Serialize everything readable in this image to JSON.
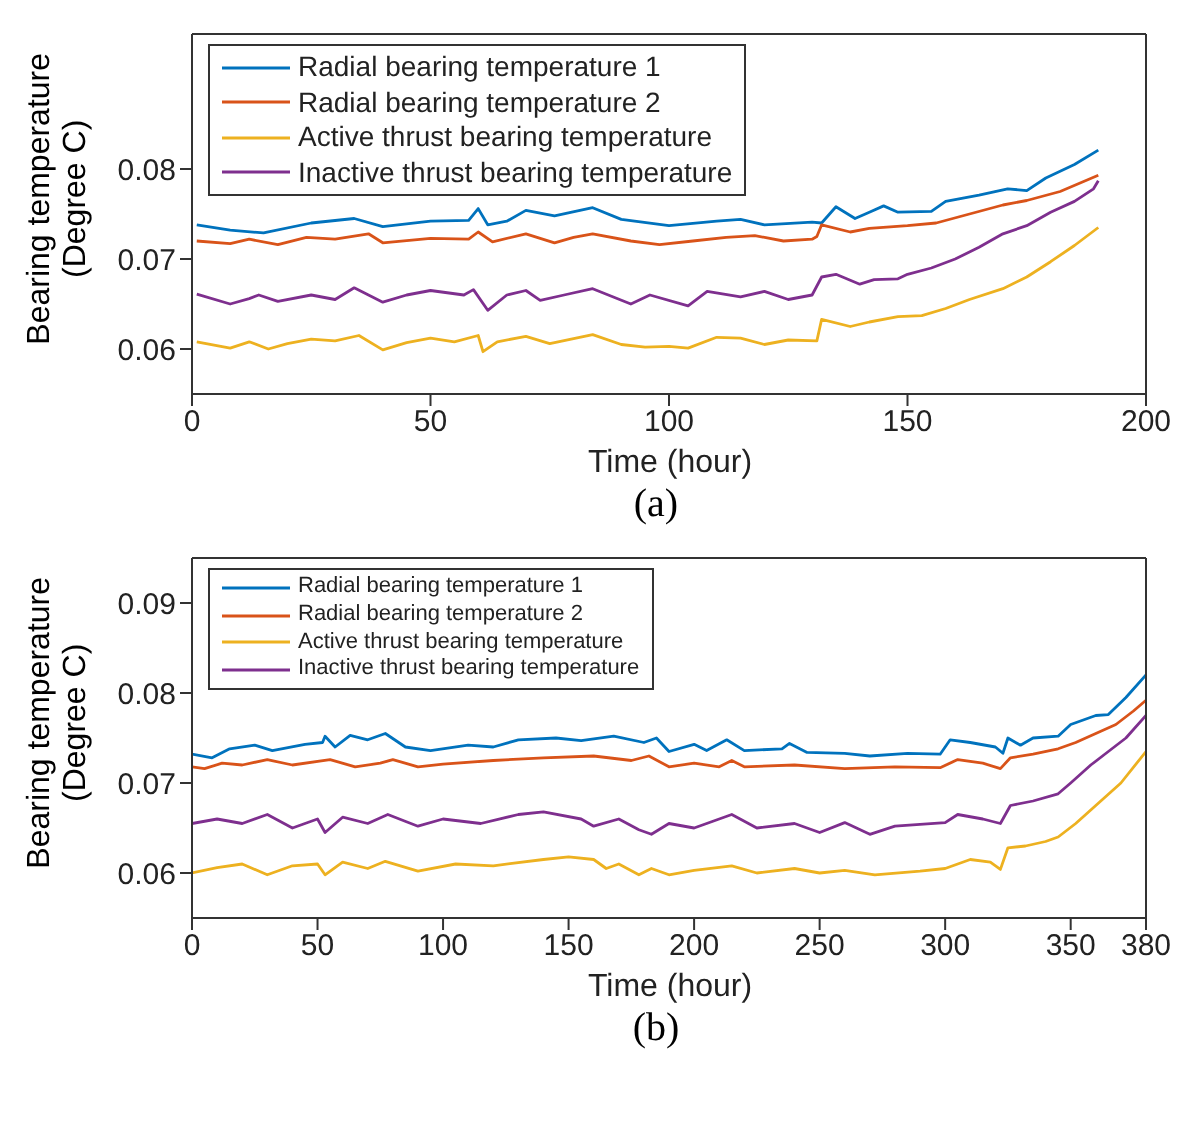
{
  "chart_data": [
    {
      "type": "line",
      "xlabel": "Time (hour)",
      "ylabel": "Bearing temperature (Degree C)",
      "annotations": [
        "(a)"
      ],
      "xlim": [
        0,
        200
      ],
      "xticks": [
        0,
        50,
        100,
        150,
        200
      ],
      "ylim": [
        0.055,
        0.095
      ],
      "yticks": [
        0.06,
        0.07,
        0.08
      ],
      "legend": "top left",
      "marker": "none",
      "line_style": "solid",
      "series": [
        {
          "name": "Radial bearing temperature 1",
          "color": "#0072bd",
          "x": [
            1,
            8,
            15,
            25,
            34,
            40,
            50,
            58,
            60,
            62,
            66,
            70,
            76,
            84,
            90,
            100,
            110,
            115,
            120,
            130,
            132,
            135,
            139,
            142,
            145,
            148,
            155,
            158,
            165,
            171,
            175,
            179,
            185,
            190
          ],
          "values": [
            0.0738,
            0.0732,
            0.0729,
            0.074,
            0.0745,
            0.0736,
            0.0742,
            0.0743,
            0.0756,
            0.0738,
            0.0742,
            0.0754,
            0.0748,
            0.0757,
            0.0744,
            0.0737,
            0.0742,
            0.0744,
            0.0738,
            0.0741,
            0.074,
            0.0758,
            0.0745,
            0.0752,
            0.0759,
            0.0752,
            0.0753,
            0.0764,
            0.0771,
            0.0778,
            0.0776,
            0.079,
            0.0805,
            0.0821
          ]
        },
        {
          "name": "Radial bearing temperature 2",
          "color": "#d95319",
          "x": [
            1,
            8,
            12,
            18,
            24,
            30,
            37,
            40,
            50,
            58,
            60,
            63,
            70,
            76,
            80,
            84,
            92,
            98,
            105,
            112,
            118,
            124,
            130,
            131,
            132,
            138,
            142,
            150,
            156,
            163,
            170,
            175,
            182,
            190
          ],
          "values": [
            0.072,
            0.0717,
            0.0722,
            0.0716,
            0.0724,
            0.0722,
            0.0728,
            0.0718,
            0.0723,
            0.0722,
            0.073,
            0.0719,
            0.0728,
            0.0718,
            0.0724,
            0.0728,
            0.072,
            0.0716,
            0.072,
            0.0724,
            0.0726,
            0.072,
            0.0722,
            0.0725,
            0.0738,
            0.073,
            0.0734,
            0.0737,
            0.074,
            0.075,
            0.076,
            0.0765,
            0.0775,
            0.0793
          ]
        },
        {
          "name": "Active thrust bearing temperature",
          "color": "#edb120",
          "x": [
            1,
            8,
            12,
            16,
            20,
            25,
            30,
            35,
            40,
            45,
            50,
            55,
            60,
            61,
            64,
            70,
            75,
            84,
            90,
            95,
            100,
            104,
            110,
            115,
            120,
            125,
            131,
            132,
            138,
            142,
            148,
            153,
            158,
            163,
            170,
            175,
            180,
            185,
            190
          ],
          "values": [
            0.0608,
            0.0601,
            0.0608,
            0.06,
            0.0606,
            0.0611,
            0.0609,
            0.0615,
            0.0599,
            0.0607,
            0.0612,
            0.0608,
            0.0615,
            0.0597,
            0.0608,
            0.0614,
            0.0606,
            0.0616,
            0.0605,
            0.0602,
            0.0603,
            0.0601,
            0.0613,
            0.0612,
            0.0605,
            0.061,
            0.0609,
            0.0633,
            0.0625,
            0.063,
            0.0636,
            0.0637,
            0.0645,
            0.0655,
            0.0667,
            0.068,
            0.0697,
            0.0715,
            0.0735
          ]
        },
        {
          "name": "Inactive thrust bearing temperature",
          "color": "#7e2f8e",
          "x": [
            1,
            8,
            12,
            14,
            18,
            25,
            30,
            34,
            40,
            45,
            50,
            57,
            59,
            62,
            66,
            70,
            73,
            78,
            84,
            92,
            96,
            104,
            108,
            115,
            120,
            125,
            130,
            132,
            135,
            140,
            143,
            148,
            150,
            155,
            160,
            165,
            170,
            175,
            180,
            185,
            189,
            190
          ],
          "values": [
            0.0661,
            0.065,
            0.0656,
            0.066,
            0.0653,
            0.066,
            0.0655,
            0.0668,
            0.0652,
            0.066,
            0.0665,
            0.066,
            0.0666,
            0.0643,
            0.066,
            0.0665,
            0.0654,
            0.066,
            0.0667,
            0.065,
            0.066,
            0.0648,
            0.0664,
            0.0658,
            0.0664,
            0.0655,
            0.066,
            0.068,
            0.0683,
            0.0672,
            0.0677,
            0.0678,
            0.0683,
            0.069,
            0.07,
            0.0713,
            0.0728,
            0.0737,
            0.0752,
            0.0764,
            0.0778,
            0.0787
          ]
        }
      ]
    },
    {
      "type": "line",
      "xlabel": "Time (hour)",
      "ylabel": "Bearing temperature (Degree C)",
      "annotations": [
        "(b)"
      ],
      "xlim": [
        0,
        380
      ],
      "xticks": [
        0,
        50,
        100,
        150,
        200,
        250,
        300,
        350,
        380
      ],
      "ylim": [
        0.055,
        0.095
      ],
      "yticks": [
        0.06,
        0.07,
        0.08,
        0.09
      ],
      "legend": "top left",
      "marker": "none",
      "line_style": "solid",
      "series": [
        {
          "name": "Radial bearing temperature 1",
          "color": "#0072bd",
          "x": [
            0,
            8,
            15,
            25,
            32,
            45,
            52,
            53,
            57,
            63,
            70,
            77,
            85,
            95,
            110,
            120,
            130,
            145,
            155,
            168,
            180,
            185,
            190,
            200,
            205,
            213,
            220,
            235,
            238,
            245,
            260,
            270,
            285,
            298,
            302,
            310,
            320,
            323,
            325,
            330,
            335,
            345,
            350,
            360,
            365,
            372,
            380
          ],
          "values": [
            0.0732,
            0.0728,
            0.0738,
            0.0742,
            0.0736,
            0.0743,
            0.0745,
            0.0752,
            0.074,
            0.0753,
            0.0748,
            0.0755,
            0.074,
            0.0736,
            0.0742,
            0.074,
            0.0748,
            0.075,
            0.0747,
            0.0752,
            0.0745,
            0.075,
            0.0735,
            0.0743,
            0.0736,
            0.0748,
            0.0736,
            0.0738,
            0.0744,
            0.0734,
            0.0733,
            0.073,
            0.0733,
            0.0732,
            0.0748,
            0.0745,
            0.074,
            0.0733,
            0.075,
            0.0742,
            0.075,
            0.0752,
            0.0765,
            0.0775,
            0.0776,
            0.0795,
            0.082
          ]
        },
        {
          "name": "Radial bearing temperature 2",
          "color": "#d95319",
          "x": [
            0,
            5,
            12,
            20,
            30,
            40,
            55,
            65,
            75,
            80,
            90,
            100,
            120,
            140,
            160,
            175,
            182,
            190,
            200,
            210,
            215,
            220,
            240,
            260,
            280,
            298,
            305,
            315,
            322,
            326,
            335,
            345,
            352,
            360,
            368,
            375,
            380
          ],
          "values": [
            0.0718,
            0.0716,
            0.0722,
            0.072,
            0.0726,
            0.072,
            0.0726,
            0.0718,
            0.0722,
            0.0726,
            0.0718,
            0.0721,
            0.0725,
            0.0728,
            0.073,
            0.0725,
            0.073,
            0.0718,
            0.0722,
            0.0718,
            0.0725,
            0.0718,
            0.072,
            0.0716,
            0.0718,
            0.0717,
            0.0726,
            0.0722,
            0.0716,
            0.0728,
            0.0732,
            0.0738,
            0.0745,
            0.0755,
            0.0765,
            0.078,
            0.0792
          ]
        },
        {
          "name": "Active thrust bearing temperature",
          "color": "#edb120",
          "x": [
            0,
            10,
            20,
            30,
            40,
            50,
            53,
            60,
            70,
            77,
            90,
            105,
            120,
            140,
            150,
            160,
            165,
            170,
            178,
            183,
            190,
            200,
            215,
            225,
            240,
            250,
            260,
            272,
            290,
            300,
            310,
            318,
            322,
            325,
            332,
            340,
            345,
            352,
            360,
            370,
            380
          ],
          "values": [
            0.06,
            0.0606,
            0.061,
            0.0598,
            0.0608,
            0.061,
            0.0598,
            0.0612,
            0.0605,
            0.0613,
            0.0602,
            0.061,
            0.0608,
            0.0615,
            0.0618,
            0.0615,
            0.0605,
            0.061,
            0.0598,
            0.0605,
            0.0598,
            0.0603,
            0.0608,
            0.06,
            0.0605,
            0.06,
            0.0603,
            0.0598,
            0.0602,
            0.0605,
            0.0615,
            0.0612,
            0.0604,
            0.0628,
            0.063,
            0.0635,
            0.064,
            0.0655,
            0.0675,
            0.07,
            0.0735
          ]
        },
        {
          "name": "Inactive thrust bearing temperature",
          "color": "#7e2f8e",
          "x": [
            0,
            10,
            20,
            30,
            40,
            50,
            53,
            60,
            70,
            78,
            90,
            100,
            115,
            130,
            140,
            155,
            160,
            170,
            178,
            183,
            190,
            200,
            210,
            215,
            225,
            240,
            250,
            260,
            270,
            280,
            300,
            305,
            315,
            322,
            326,
            335,
            345,
            350,
            358,
            365,
            372,
            380
          ],
          "values": [
            0.0655,
            0.066,
            0.0655,
            0.0665,
            0.065,
            0.066,
            0.0645,
            0.0662,
            0.0655,
            0.0665,
            0.0652,
            0.066,
            0.0655,
            0.0665,
            0.0668,
            0.066,
            0.0652,
            0.066,
            0.0648,
            0.0643,
            0.0655,
            0.065,
            0.066,
            0.0665,
            0.065,
            0.0655,
            0.0645,
            0.0656,
            0.0643,
            0.0652,
            0.0656,
            0.0665,
            0.066,
            0.0655,
            0.0675,
            0.068,
            0.0688,
            0.07,
            0.072,
            0.0735,
            0.075,
            0.0775
          ]
        }
      ]
    }
  ]
}
